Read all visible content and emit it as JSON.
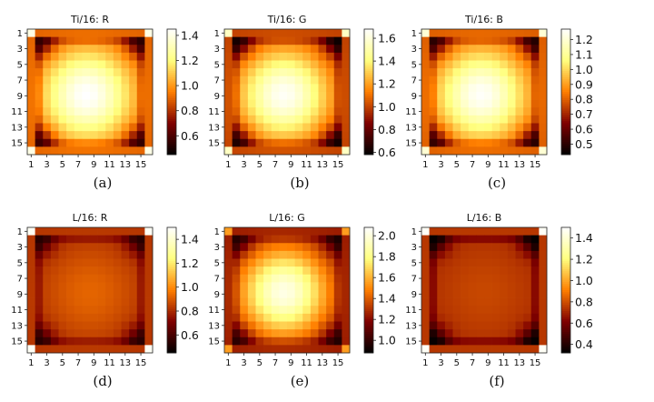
{
  "figure": {
    "captions": [
      "(a)",
      "(b)",
      "(c)",
      "(d)",
      "(e)",
      "(f)"
    ]
  },
  "chart_data": [
    {
      "type": "heatmap",
      "title": "Ti/16: R",
      "xticks": [
        "1",
        "3",
        "5",
        "7",
        "9",
        "11",
        "13",
        "15"
      ],
      "yticks": [
        "1",
        "3",
        "5",
        "7",
        "9",
        "11",
        "13",
        "15"
      ],
      "grid_size": 16,
      "colorbar_range": [
        0.45,
        1.45
      ],
      "colorbar_ticks": [
        "0.6",
        "0.8",
        "1.0",
        "1.2",
        "1.4"
      ],
      "colorbar_ticks_values": [
        0.6,
        0.8,
        1.0,
        1.2,
        1.4
      ],
      "center_value": 1.45,
      "edge_value": 0.85,
      "inner_ring_value": 0.55,
      "corner_value": 1.4,
      "center_offset": [
        -0.4,
        0.4
      ],
      "sigma": 4.2,
      "colormap": "afmhot",
      "caption": "(a)"
    },
    {
      "type": "heatmap",
      "title": "Ti/16: G",
      "xticks": [
        "1",
        "3",
        "5",
        "7",
        "9",
        "11",
        "13",
        "15"
      ],
      "yticks": [
        "1",
        "3",
        "5",
        "7",
        "9",
        "11",
        "13",
        "15"
      ],
      "grid_size": 16,
      "colorbar_range": [
        0.58,
        1.68
      ],
      "colorbar_ticks": [
        "0.6",
        "0.8",
        "1.0",
        "1.2",
        "1.4",
        "1.6"
      ],
      "colorbar_ticks_values": [
        0.6,
        0.8,
        1.0,
        1.2,
        1.4,
        1.6
      ],
      "center_value": 1.66,
      "edge_value": 0.95,
      "inner_ring_value": 0.62,
      "corner_value": 1.55,
      "center_offset": [
        -0.4,
        0.4
      ],
      "sigma": 4.2,
      "colormap": "afmhot",
      "caption": "(b)"
    },
    {
      "type": "heatmap",
      "title": "Ti/16: B",
      "xticks": [
        "1",
        "3",
        "5",
        "7",
        "9",
        "11",
        "13",
        "15"
      ],
      "yticks": [
        "1",
        "3",
        "5",
        "7",
        "9",
        "11",
        "13",
        "15"
      ],
      "grid_size": 16,
      "colorbar_range": [
        0.43,
        1.27
      ],
      "colorbar_ticks": [
        "0.5",
        "0.6",
        "0.7",
        "0.8",
        "0.9",
        "1.0",
        "1.1",
        "1.2"
      ],
      "colorbar_ticks_values": [
        0.5,
        0.6,
        0.7,
        0.8,
        0.9,
        1.0,
        1.1,
        1.2
      ],
      "center_value": 1.26,
      "edge_value": 0.75,
      "inner_ring_value": 0.5,
      "corner_value": 1.2,
      "center_offset": [
        -0.4,
        0.4
      ],
      "sigma": 4.2,
      "colormap": "afmhot",
      "caption": "(c)"
    },
    {
      "type": "heatmap",
      "title": "L/16: R",
      "xticks": [
        "1",
        "3",
        "5",
        "7",
        "9",
        "11",
        "13",
        "15"
      ],
      "yticks": [
        "1",
        "3",
        "5",
        "7",
        "9",
        "11",
        "13",
        "15"
      ],
      "grid_size": 16,
      "colorbar_range": [
        0.45,
        1.5
      ],
      "colorbar_ticks": [
        "0.6",
        "0.8",
        "1.0",
        "1.2",
        "1.4"
      ],
      "colorbar_ticks_values": [
        0.6,
        0.8,
        1.0,
        1.2,
        1.4
      ],
      "center_value": 0.92,
      "edge_value": 0.78,
      "inner_ring_value": 0.55,
      "corner_value": 1.48,
      "center_offset": [
        0.0,
        0.3
      ],
      "sigma": 4.8,
      "colormap": "afmhot",
      "caption": "(d)"
    },
    {
      "type": "heatmap",
      "title": "L/16: G",
      "xticks": [
        "1",
        "3",
        "5",
        "7",
        "9",
        "11",
        "13",
        "15"
      ],
      "yticks": [
        "1",
        "3",
        "5",
        "7",
        "9",
        "11",
        "13",
        "15"
      ],
      "grid_size": 16,
      "colorbar_range": [
        0.88,
        2.08
      ],
      "colorbar_ticks": [
        "1.0",
        "1.2",
        "1.4",
        "1.6",
        "1.8",
        "2.0"
      ],
      "colorbar_ticks_values": [
        1.0,
        1.2,
        1.4,
        1.6,
        1.8,
        2.0
      ],
      "center_value": 2.02,
      "edge_value": 1.2,
      "inner_ring_value": 0.95,
      "corner_value": 1.55,
      "center_offset": [
        -0.4,
        0.3
      ],
      "sigma": 4.0,
      "colormap": "afmhot",
      "caption": "(e)"
    },
    {
      "type": "heatmap",
      "title": "L/16: B",
      "xticks": [
        "1",
        "3",
        "5",
        "7",
        "9",
        "11",
        "13",
        "15"
      ],
      "yticks": [
        "1",
        "3",
        "5",
        "7",
        "9",
        "11",
        "13",
        "15"
      ],
      "grid_size": 16,
      "colorbar_range": [
        0.32,
        1.5
      ],
      "colorbar_ticks": [
        "0.4",
        "0.6",
        "0.8",
        "1.0",
        "1.2",
        "1.4"
      ],
      "colorbar_ticks_values": [
        0.4,
        0.6,
        0.8,
        1.0,
        1.2,
        1.4
      ],
      "center_value": 0.78,
      "edge_value": 0.7,
      "inner_ring_value": 0.38,
      "corner_value": 1.48,
      "center_offset": [
        0.0,
        0.3
      ],
      "sigma": 4.8,
      "colormap": "afmhot",
      "caption": "(f)"
    }
  ]
}
